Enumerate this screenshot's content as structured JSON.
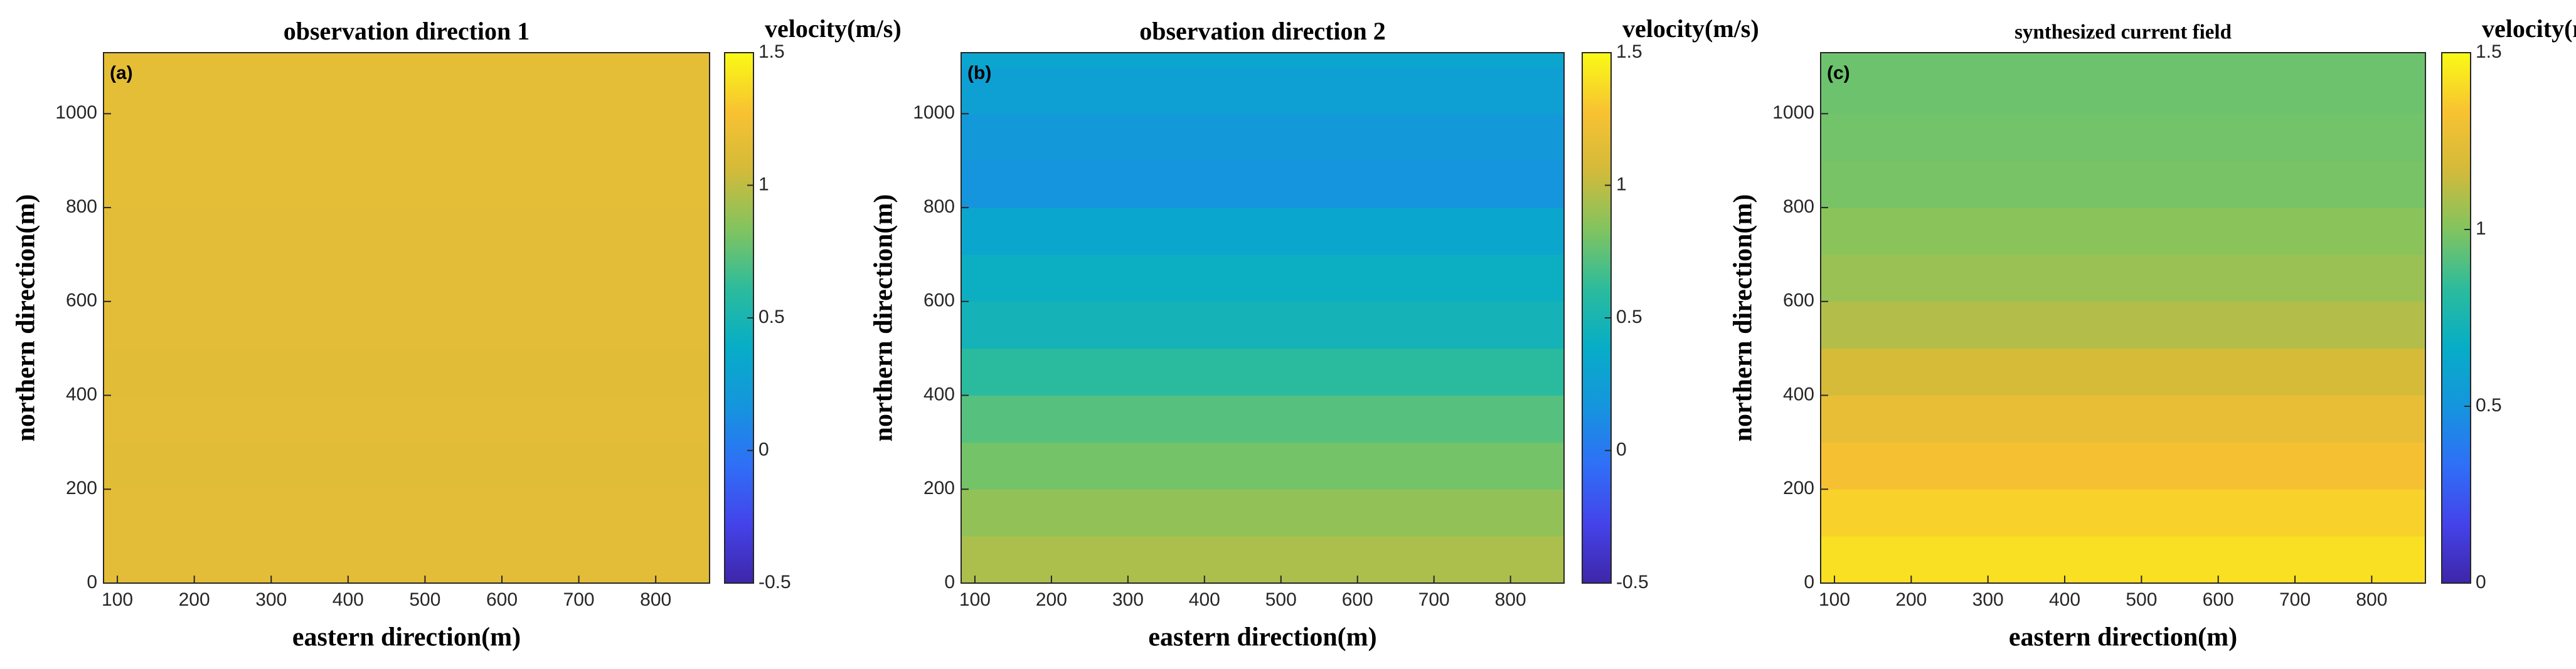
{
  "chart_data": [
    {
      "type": "heatmap",
      "title": "observation direction 1",
      "panel_label": "(a)",
      "xlabel": "eastern direction(m)",
      "ylabel": "northern direction(m)",
      "colorbar_label": "velocity(m/s)",
      "xlim": [
        82,
        870
      ],
      "xticks": [
        100,
        200,
        300,
        400,
        500,
        600,
        700,
        800
      ],
      "ylim": [
        0,
        1130
      ],
      "yticks": [
        0,
        200,
        400,
        600,
        800,
        1000
      ],
      "y": [
        0,
        100,
        200,
        300,
        400,
        500,
        600,
        700,
        800,
        900,
        1000,
        1100
      ],
      "values": [
        1.15,
        1.15,
        1.14,
        1.15,
        1.14,
        1.15,
        1.15,
        1.15,
        1.16,
        1.16,
        1.16,
        1.17
      ],
      "clim": [
        -0.5,
        1.5
      ],
      "cticks": [
        -0.5,
        0,
        0.5,
        1,
        1.5
      ],
      "colormap": [
        "#3e26a8",
        "#4443e9",
        "#2f6ff7",
        "#1595dd",
        "#07adc7",
        "#2cbc9c",
        "#81c45f",
        "#d3ba3a",
        "#f8c232",
        "#f9fb15"
      ]
    },
    {
      "type": "heatmap",
      "title": "observation direction 2",
      "panel_label": "(b)",
      "xlabel": "eastern direction(m)",
      "ylabel": "northern direction(m)",
      "colorbar_label": "velocity(m/s)",
      "xlim": [
        82,
        870
      ],
      "xticks": [
        100,
        200,
        300,
        400,
        500,
        600,
        700,
        800
      ],
      "ylim": [
        0,
        1130
      ],
      "yticks": [
        0,
        200,
        400,
        600,
        800,
        1000
      ],
      "y": [
        0,
        100,
        200,
        300,
        400,
        500,
        600,
        700,
        800,
        900,
        1000,
        1100
      ],
      "values": [
        0.95,
        0.88,
        0.8,
        0.72,
        0.6,
        0.47,
        0.42,
        0.32,
        0.17,
        0.2,
        0.27,
        0.32
      ],
      "clim": [
        -0.5,
        1.5
      ],
      "cticks": [
        -0.5,
        0,
        0.5,
        1,
        1.5
      ],
      "colormap": [
        "#3e26a8",
        "#4443e9",
        "#2f6ff7",
        "#1595dd",
        "#07adc7",
        "#2cbc9c",
        "#81c45f",
        "#d3ba3a",
        "#f8c232",
        "#f9fb15"
      ]
    },
    {
      "type": "heatmap",
      "title": "synthesized current field",
      "panel_label": "(c)",
      "xlabel": "eastern direction(m)",
      "ylabel": "northern direction(m)",
      "colorbar_label": "velocity(m/s)",
      "xlim": [
        82,
        870
      ],
      "xticks": [
        100,
        200,
        300,
        400,
        500,
        600,
        700,
        800
      ],
      "ylim": [
        0,
        1130
      ],
      "yticks": [
        0,
        200,
        400,
        600,
        800,
        1000
      ],
      "y": [
        0,
        100,
        200,
        300,
        400,
        500,
        600,
        700,
        800,
        900,
        1000,
        1100
      ],
      "values": [
        1.42,
        1.38,
        1.32,
        1.26,
        1.18,
        1.1,
        1.05,
        1.02,
        0.98,
        0.97,
        0.96,
        0.96
      ],
      "clim": [
        0,
        1.5
      ],
      "cticks": [
        0,
        0.5,
        1,
        1.5
      ],
      "colormap": [
        "#3e26a8",
        "#4443e9",
        "#2f6ff7",
        "#1595dd",
        "#07adc7",
        "#2cbc9c",
        "#81c45f",
        "#d3ba3a",
        "#f8c232",
        "#f9fb15"
      ]
    }
  ]
}
